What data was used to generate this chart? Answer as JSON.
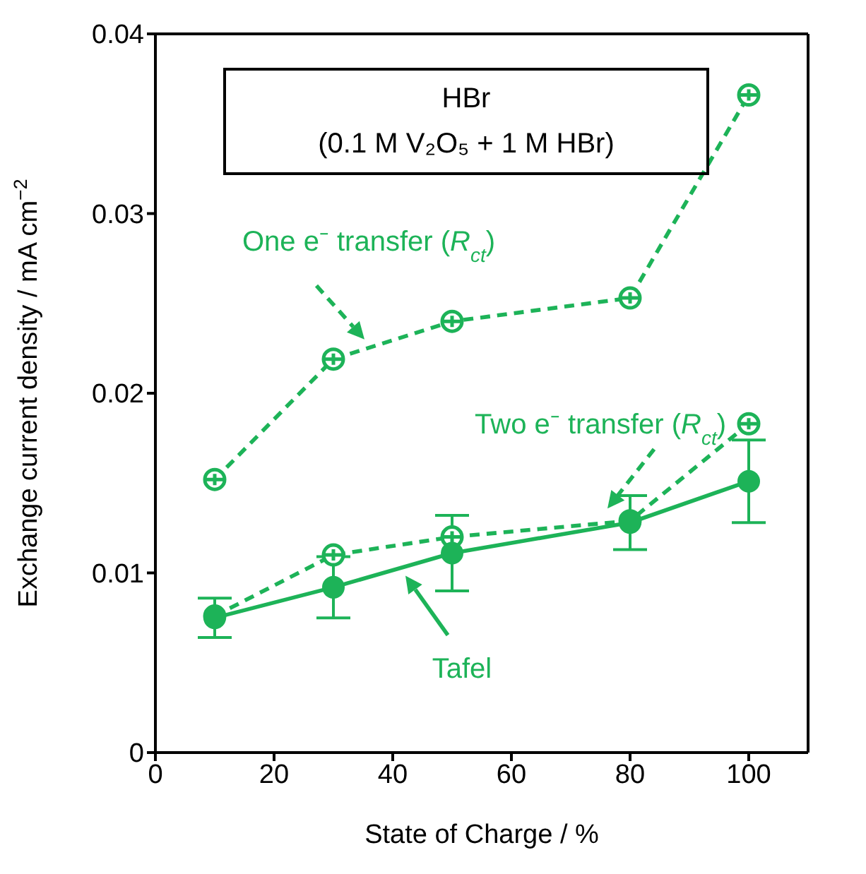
{
  "chart_data": {
    "type": "line",
    "xlabel": "State of Charge / %",
    "ylabel": "Exchange current density / mA cm$^{−2}$",
    "annotations": [
      "HBr",
      "(0.1 M V₂O₅ + 1 M HBr)"
    ],
    "x": [
      10,
      30,
      50,
      80,
      100
    ],
    "xlim": [
      0,
      110
    ],
    "xticks": [
      0,
      20,
      40,
      60,
      80,
      100
    ],
    "ylim": [
      0,
      0.04
    ],
    "yticks": [
      0,
      0.01,
      0.02,
      0.03,
      0.04
    ],
    "series": [
      {
        "name": "One e⁻ transfer (R$_{ct}$)",
        "color": "#1db358",
        "values": [
          0.0152,
          0.0219,
          0.024,
          0.0253,
          0.0366
        ],
        "line_style": "dashed",
        "marker": "cross"
      },
      {
        "name": "Two e⁻ transfer (R$_{ct}$)",
        "color": "#1db358",
        "values": [
          0.0076,
          0.011,
          0.012,
          0.0129,
          0.0183
        ],
        "line_style": "dashed",
        "marker": "cross"
      },
      {
        "name": "Tafel",
        "color": "#1db358",
        "values": [
          0.0075,
          0.0092,
          0.0111,
          0.0128,
          0.0151
        ],
        "errors": [
          0.0011,
          0.0017,
          0.0021,
          0.0015,
          0.0023
        ],
        "line_style": "solid",
        "marker": "circle"
      }
    ]
  }
}
